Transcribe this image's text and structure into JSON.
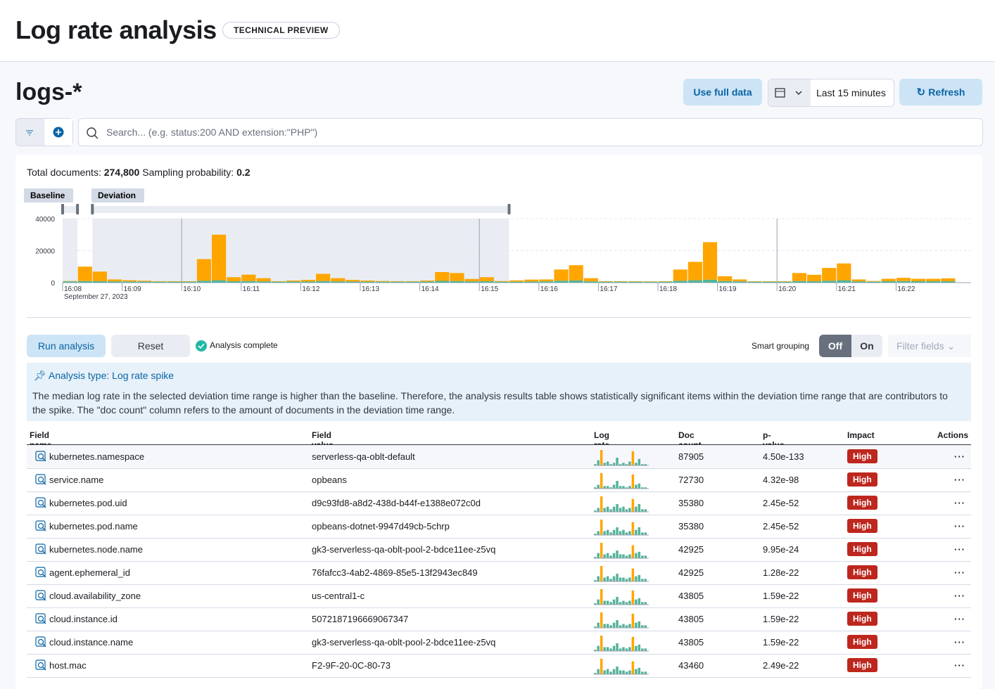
{
  "header": {
    "title": "Log rate analysis",
    "badge": "TECHNICAL PREVIEW"
  },
  "index_title": "logs-*",
  "toolbar": {
    "use_full_data": "Use full data",
    "time_range": "Last 15 minutes",
    "refresh": "Refresh",
    "search_placeholder": "Search... (e.g. status:200 AND extension:\"PHP\")"
  },
  "summary": {
    "total_label": "Total documents:",
    "total": "274,800",
    "sampling_label": "Sampling probability:",
    "sampling": "0.2"
  },
  "chart_data": {
    "type": "bar",
    "stacked": true,
    "baseline_label": "Baseline",
    "deviation_label": "Deviation",
    "date_label": "September 27, 2023",
    "categories": [
      "16:08",
      null,
      null,
      null,
      "16:09",
      null,
      null,
      null,
      "16:10",
      null,
      null,
      null,
      "16:11",
      null,
      null,
      null,
      "16:12",
      null,
      null,
      null,
      "16:13",
      null,
      null,
      null,
      "16:14",
      null,
      null,
      null,
      "16:15",
      null,
      null,
      null,
      "16:16",
      null,
      null,
      null,
      "16:17",
      null,
      null,
      null,
      "16:18",
      null,
      null,
      null,
      "16:19",
      null,
      null,
      null,
      "16:20",
      null,
      null,
      null,
      "16:21",
      null,
      null,
      null,
      "16:22",
      null,
      null,
      null
    ],
    "series": [
      {
        "color": "#54b399",
        "values": [
          800,
          1000,
          900,
          800,
          700,
          700,
          600,
          600,
          600,
          1200,
          1500,
          900,
          1000,
          800,
          600,
          700,
          700,
          1000,
          800,
          700,
          600,
          600,
          600,
          600,
          700,
          1100,
          1000,
          800,
          900,
          600,
          600,
          700,
          800,
          1200,
          1400,
          800,
          600,
          600,
          600,
          600,
          600,
          1200,
          1500,
          1800,
          1000,
          800,
          600,
          600,
          600,
          1000,
          900,
          1200,
          1500,
          800,
          600,
          900,
          1000,
          900,
          900,
          900
        ]
      },
      {
        "color": "#ffa500",
        "values": [
          200,
          9000,
          6000,
          1200,
          800,
          500,
          300,
          300,
          300,
          13500,
          28500,
          2500,
          4000,
          2000,
          300,
          600,
          1000,
          4500,
          2000,
          1000,
          700,
          400,
          300,
          300,
          600,
          5500,
          5000,
          1500,
          2500,
          400,
          800,
          1200,
          1200,
          7000,
          9500,
          2000,
          300,
          300,
          300,
          200,
          300,
          7000,
          11500,
          23500,
          3000,
          1200,
          300,
          300,
          300,
          5000,
          4000,
          8000,
          10500,
          1200,
          400,
          1500,
          2000,
          1500,
          1500,
          1800
        ]
      }
    ],
    "ylim": [
      0,
      40000
    ],
    "yticks": [
      0,
      20000,
      40000
    ],
    "grid": true
  },
  "controls": {
    "run": "Run analysis",
    "reset": "Reset",
    "status": "Analysis complete",
    "smart_grouping": "Smart grouping",
    "off": "Off",
    "on": "On",
    "filter_fields": "Filter fields"
  },
  "callout": {
    "title": "Analysis type: Log rate spike",
    "text": "The median log rate in the selected deviation time range is higher than the baseline. Therefore, the analysis results table shows statistically significant items within the deviation time range that are contributors to the spike. The \"doc count\" column refers to the amount of documents in the deviation time range."
  },
  "table": {
    "columns": [
      "Field name",
      "Field value",
      "Log rate",
      "Doc count",
      "p-value",
      "Impact",
      "Actions"
    ],
    "rows": [
      {
        "field": "kubernetes.namespace",
        "value": "serverless-qa-oblt-default",
        "doc_count": 87905,
        "p_value": "4.50e-133",
        "impact": "High",
        "log_rate": [
          1,
          4,
          12,
          2,
          3,
          1,
          2,
          6,
          1,
          2,
          1,
          3,
          11,
          2,
          5,
          1,
          1
        ]
      },
      {
        "field": "service.name",
        "value": "opbeans",
        "doc_count": 72730,
        "p_value": "4.32e-98",
        "impact": "High",
        "log_rate": [
          1,
          3,
          12,
          2,
          2,
          1,
          3,
          6,
          2,
          2,
          1,
          2,
          11,
          3,
          4,
          1,
          1
        ]
      },
      {
        "field": "kubernetes.pod.uid",
        "value": "d9c93fd8-a8d2-438d-b44f-e1388e072c0d",
        "doc_count": 35380,
        "p_value": "2.45e-52",
        "impact": "High",
        "log_rate": [
          1,
          3,
          12,
          3,
          4,
          2,
          4,
          6,
          3,
          4,
          2,
          3,
          10,
          4,
          6,
          2,
          2
        ]
      },
      {
        "field": "kubernetes.pod.name",
        "value": "opbeans-dotnet-9947d49cb-5chrp",
        "doc_count": 35380,
        "p_value": "2.45e-52",
        "impact": "High",
        "log_rate": [
          1,
          3,
          12,
          3,
          4,
          2,
          4,
          6,
          3,
          4,
          2,
          3,
          10,
          4,
          6,
          2,
          2
        ]
      },
      {
        "field": "kubernetes.node.name",
        "value": "gk3-serverless-qa-oblt-pool-2-bdce11ee-z5vq",
        "doc_count": 42925,
        "p_value": "9.95e-24",
        "impact": "High",
        "log_rate": [
          1,
          4,
          12,
          3,
          4,
          2,
          4,
          6,
          3,
          3,
          2,
          3,
          10,
          4,
          5,
          2,
          2
        ]
      },
      {
        "field": "agent.ephemeral_id",
        "value": "76fafcc3-4ab2-4869-85e5-13f2943ec849",
        "doc_count": 42925,
        "p_value": "1.28e-22",
        "impact": "High",
        "log_rate": [
          1,
          4,
          12,
          3,
          4,
          2,
          4,
          6,
          3,
          3,
          2,
          3,
          10,
          4,
          5,
          2,
          2
        ]
      },
      {
        "field": "cloud.availability_zone",
        "value": "us-central1-c",
        "doc_count": 43805,
        "p_value": "1.59e-22",
        "impact": "High",
        "log_rate": [
          1,
          4,
          12,
          3,
          3,
          2,
          4,
          6,
          2,
          3,
          2,
          3,
          11,
          4,
          5,
          2,
          2
        ]
      },
      {
        "field": "cloud.instance.id",
        "value": "5072187196669067347",
        "doc_count": 43805,
        "p_value": "1.59e-22",
        "impact": "High",
        "log_rate": [
          1,
          4,
          12,
          3,
          3,
          2,
          4,
          6,
          2,
          3,
          2,
          3,
          11,
          4,
          5,
          2,
          2
        ]
      },
      {
        "field": "cloud.instance.name",
        "value": "gk3-serverless-qa-oblt-pool-2-bdce11ee-z5vq",
        "doc_count": 43805,
        "p_value": "1.59e-22",
        "impact": "High",
        "log_rate": [
          1,
          4,
          12,
          3,
          3,
          2,
          4,
          6,
          2,
          3,
          2,
          3,
          11,
          4,
          5,
          2,
          2
        ]
      },
      {
        "field": "host.mac",
        "value": "F2-9F-20-0C-80-73",
        "doc_count": 43460,
        "p_value": "2.49e-22",
        "impact": "High",
        "log_rate": [
          1,
          4,
          12,
          3,
          4,
          2,
          4,
          6,
          3,
          3,
          2,
          3,
          10,
          4,
          5,
          2,
          2
        ]
      }
    ]
  }
}
